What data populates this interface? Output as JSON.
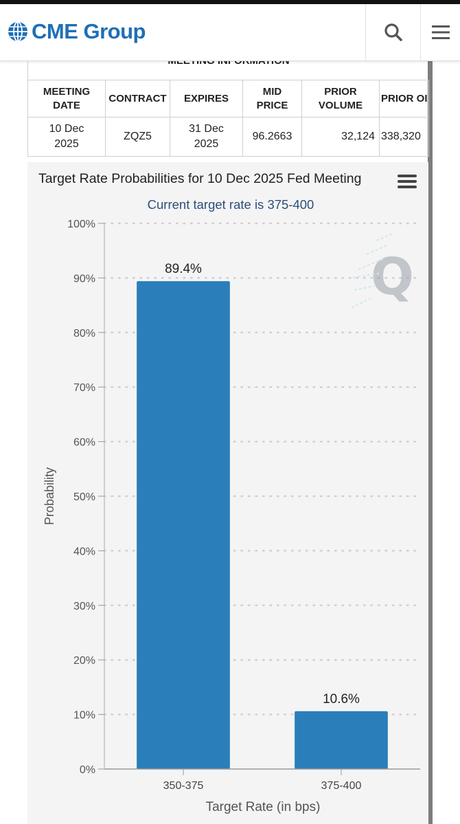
{
  "header": {
    "brand": "CME Group",
    "logo_icon": "globe-icon",
    "search_icon": "search-icon",
    "menu_icon": "hamburger-menu-icon",
    "brand_color": "#1e6fb5"
  },
  "meeting_info": {
    "section_title": "MEETING INFORMATION",
    "columns": {
      "meeting_date_1": "MEETING",
      "meeting_date_2": "DATE",
      "contract": "CONTRACT",
      "expires": "EXPIRES",
      "mid_price_1": "MID",
      "mid_price_2": "PRICE",
      "prior_volume_1": "PRIOR",
      "prior_volume_2": "VOLUME",
      "prior_oi": "PRIOR OI"
    },
    "row": {
      "meeting_date_1": "10 Dec",
      "meeting_date_2": "2025",
      "contract": "ZQZ5",
      "expires_1": "31 Dec",
      "expires_2": "2025",
      "mid_price": "96.2663",
      "prior_volume": "32,124",
      "prior_oi": "338,320"
    }
  },
  "chart_menu_icon": "hamburger-menu-icon",
  "watermark_icon": "quikstrike-q-icon",
  "chart_data": {
    "type": "bar",
    "title": "Target Rate Probabilities for 10 Dec 2025 Fed Meeting",
    "subtitle": "Current target rate is 375-400",
    "xlabel": "Target Rate (in bps)",
    "ylabel": "Probability",
    "categories": [
      "350-375",
      "375-400"
    ],
    "values": [
      89.4,
      10.6
    ],
    "data_labels": [
      "89.4%",
      "10.6%"
    ],
    "ylim": [
      0,
      100
    ],
    "yticks": [
      0,
      10,
      20,
      30,
      40,
      50,
      60,
      70,
      80,
      90,
      100
    ],
    "ytick_labels": [
      "0%",
      "10%",
      "20%",
      "30%",
      "40%",
      "50%",
      "60%",
      "70%",
      "80%",
      "90%",
      "100%"
    ],
    "grid": true,
    "bar_color": "#2a7fba",
    "legend": "none"
  }
}
